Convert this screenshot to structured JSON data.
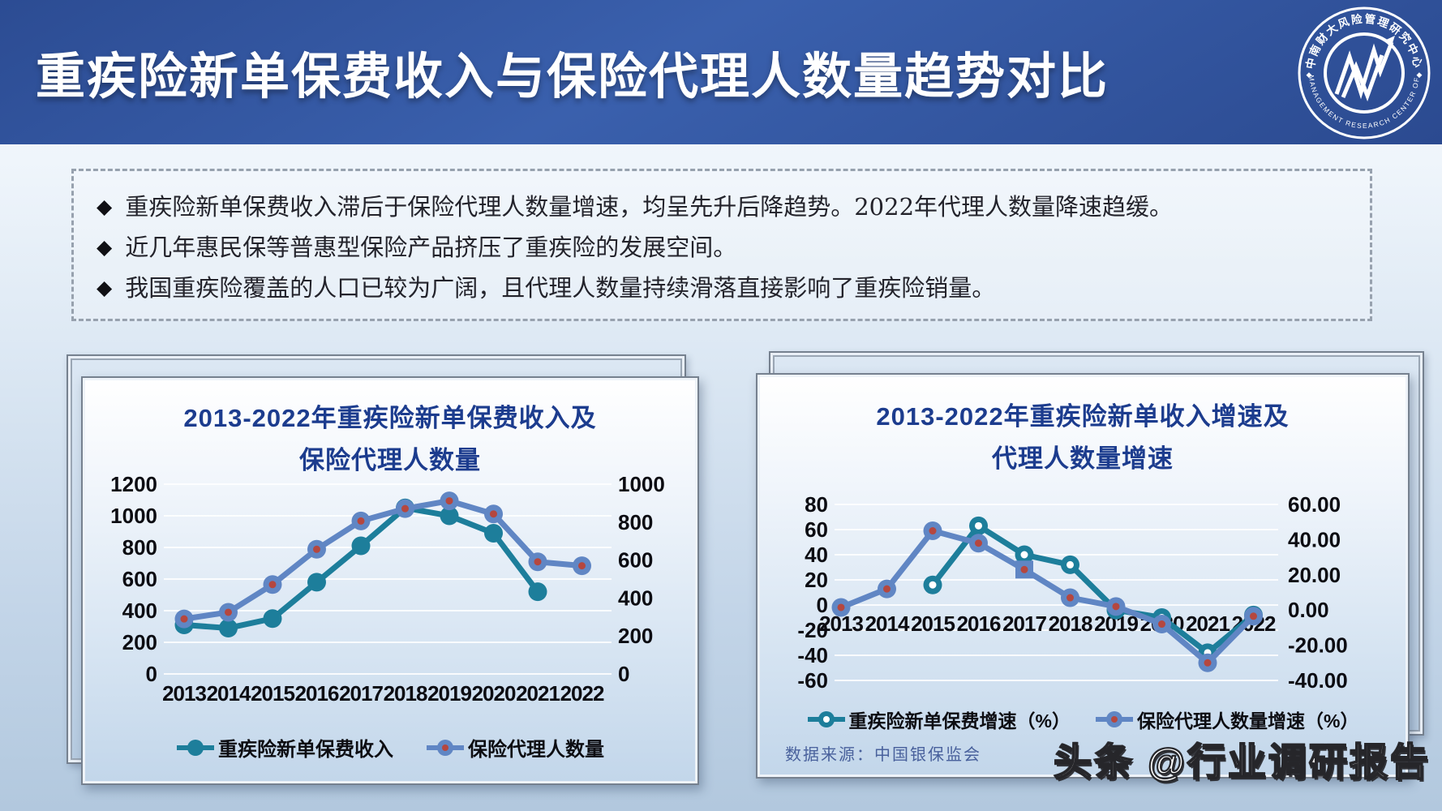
{
  "header": {
    "title": "重疾险新单保费收入与保险代理人数量趋势对比",
    "logo": {
      "text_cn": "中南财大风险管理研究中心",
      "text_en": "RISK MANAGEMENT RESEARCH CENTER OF ZUEL",
      "diamond": "◆"
    }
  },
  "bullets": {
    "marker": "◆",
    "items": [
      "重疾险新单保费收入滞后于保险代理人数量增速，均呈先升后降趋势。2022年代理人数量降速趋缓。",
      "近几年惠民保等普惠型保险产品挤压了重疾险的发展空间。",
      "我国重疾险覆盖的人口已较为广阔，且代理人数量持续滑落直接影响了重疾险销量。"
    ]
  },
  "chart_data": [
    {
      "type": "line",
      "title_line1": "2013-2022年重疾险新单保费收入及",
      "title_line2": "保险代理人数量",
      "categories": [
        "2013",
        "2014",
        "2015",
        "2016",
        "2017",
        "2018",
        "2019",
        "2020",
        "2021",
        "2022"
      ],
      "left_axis": {
        "ticks": [
          "1200",
          "1000",
          "800",
          "600",
          "400",
          "200",
          "0"
        ],
        "min": 0,
        "max": 1200
      },
      "right_axis": {
        "ticks": [
          "1000",
          "800",
          "600",
          "400",
          "200",
          "0"
        ],
        "min": 0,
        "max": 1000
      },
      "grid": true,
      "legend_position": "bottom",
      "series": [
        {
          "name": "重疾险新单保费收入",
          "axis": "left",
          "color": "#1d7e9b",
          "marker": "solid",
          "center_color": null,
          "values": [
            310,
            290,
            350,
            580,
            810,
            1050,
            1000,
            890,
            520,
            null
          ]
        },
        {
          "name": "保险代理人数量",
          "axis": "right",
          "color": "#6086c4",
          "marker": "red-center",
          "center_color": "#b5473f",
          "values": [
            290,
            325,
            471,
            657,
            806,
            871,
            912,
            843,
            591,
            570
          ]
        }
      ]
    },
    {
      "type": "line",
      "title_line1": "2013-2022年重疾险新单收入增速及",
      "title_line2": "代理人数量增速",
      "categories": [
        "2013",
        "2014",
        "2015",
        "2016",
        "2017",
        "2018",
        "2019",
        "2020",
        "2021",
        "2022"
      ],
      "left_axis": {
        "ticks": [
          "80",
          "60",
          "40",
          "20",
          "0",
          "-20",
          "-40",
          "-60"
        ],
        "min": -60,
        "max": 80
      },
      "right_axis": {
        "ticks": [
          "60.00",
          "40.00",
          "20.00",
          "0.00",
          "-20.00",
          "-40.00"
        ],
        "min": -40,
        "max": 60
      },
      "grid": true,
      "legend_position": "bottom",
      "source_note": "数据来源：中国银保监会",
      "series": [
        {
          "name": "重疾险新单保费增速（%）",
          "axis": "left",
          "color": "#1d7e9b",
          "marker": "white-center",
          "center_color": "#ffffff",
          "values": [
            null,
            null,
            16,
            63,
            40,
            32,
            -4,
            -10,
            -38,
            -8
          ]
        },
        {
          "name": "保险代理人数量增速（%）",
          "axis": "right",
          "color": "#6086c4",
          "marker": "red-center",
          "center_color": "#b5473f",
          "square_indices": [
            4
          ],
          "values": [
            1.5,
            12,
            45,
            38,
            23,
            7,
            2,
            -8,
            -30,
            -3.5
          ]
        }
      ]
    }
  ],
  "watermark": {
    "text": "头条 @行业调研报告"
  }
}
